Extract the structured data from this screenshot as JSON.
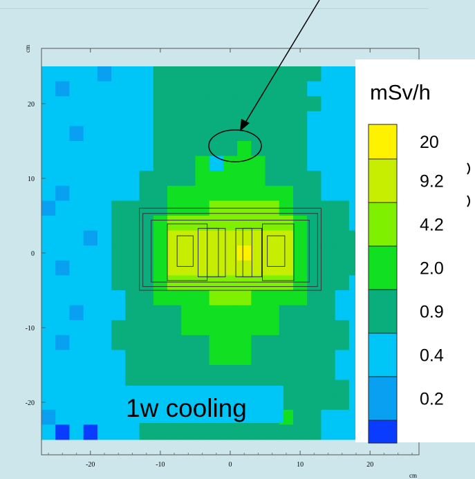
{
  "chart_data": {
    "type": "heatmap",
    "title": "",
    "x_unit": "cm",
    "y_unit": "cm",
    "xlim": [
      -27,
      27
    ],
    "ylim": [
      -25,
      25
    ],
    "grid_size_cm": 2,
    "x_ticks": [
      "-20",
      "-10",
      "0",
      "10",
      "20"
    ],
    "x_tick_values": [
      -20,
      -10,
      0,
      10,
      20
    ],
    "y_ticks": [
      "20",
      "10",
      "0",
      "-10",
      "-20"
    ],
    "y_tick_values": [
      20,
      10,
      0,
      -10,
      -20
    ],
    "annotation": "1w cooling",
    "colorbar": {
      "title": "mSv/h",
      "labels": [
        "20",
        "9.2",
        "4.2",
        "2.0",
        "0.9",
        "0.4",
        "0.2"
      ],
      "colors": [
        "#fef200",
        "#c7ee00",
        "#7ef000",
        "#11df22",
        "#0aad7c",
        "#00c6f7",
        "#0aa0f2",
        "#0a3cff"
      ]
    },
    "background_level": 5,
    "level_centers": [
      "#0aad7c",
      "#11df22",
      "#7ef000",
      "#c7ee00"
    ],
    "region_rows": [
      [
        19,
        24,
        -11,
        12,
        4
      ],
      [
        15,
        19,
        -11,
        11,
        4
      ],
      [
        11,
        15,
        -11,
        10,
        4
      ],
      [
        7,
        11,
        -13,
        13,
        4
      ],
      [
        3,
        7,
        -17,
        17,
        4
      ],
      [
        -1,
        3,
        -17,
        18,
        4
      ],
      [
        -5,
        -1,
        -17,
        18,
        4
      ],
      [
        -9,
        -5,
        -15,
        15,
        4
      ],
      [
        -13,
        -9,
        -17,
        17,
        4
      ],
      [
        -17,
        -13,
        -15,
        15,
        4
      ],
      [
        -21,
        -17,
        -15,
        17,
        4
      ],
      [
        -25,
        -21,
        -13,
        13,
        4
      ],
      [
        9,
        13,
        -5,
        5,
        3
      ],
      [
        5,
        9,
        -9,
        9,
        3
      ],
      [
        -3,
        5,
        -11,
        11,
        3
      ],
      [
        -7,
        -3,
        -11,
        11,
        3
      ],
      [
        -11,
        -7,
        -7,
        7,
        3
      ],
      [
        -15,
        -11,
        -3,
        3,
        3
      ],
      [
        5,
        7,
        -3,
        7,
        2
      ],
      [
        -5,
        5,
        -9,
        9,
        2
      ],
      [
        -7,
        -5,
        -3,
        3,
        2
      ],
      [
        -3,
        3,
        -9,
        9,
        1
      ],
      [
        -1,
        1,
        1,
        3,
        0
      ]
    ],
    "speckles": [
      [
        -25,
        25,
        5
      ],
      [
        -19,
        25,
        6
      ],
      [
        -25,
        23,
        6
      ],
      [
        -17,
        23,
        5
      ],
      [
        -21,
        21,
        5
      ],
      [
        -5,
        21,
        4
      ],
      [
        -7,
        19,
        4
      ],
      [
        -25,
        19,
        5
      ],
      [
        -17,
        15,
        5
      ],
      [
        -13,
        17,
        5
      ],
      [
        -3,
        13,
        5
      ],
      [
        1,
        15,
        3
      ],
      [
        3,
        13,
        3
      ],
      [
        -1,
        11,
        3
      ],
      [
        -25,
        9,
        6
      ],
      [
        -27,
        7,
        6
      ],
      [
        -21,
        3,
        6
      ],
      [
        -25,
        -1,
        6
      ],
      [
        -23,
        -7,
        6
      ],
      [
        -25,
        -11,
        6
      ],
      [
        -23,
        -15,
        5
      ],
      [
        -27,
        -21,
        6
      ],
      [
        -25,
        -23,
        7
      ],
      [
        -21,
        -23,
        7
      ],
      [
        -3,
        -23,
        4
      ],
      [
        3,
        -19,
        3
      ],
      [
        7,
        -21,
        3
      ],
      [
        13,
        -19,
        4
      ],
      [
        15,
        -23,
        5
      ],
      [
        19,
        -15,
        5
      ],
      [
        19,
        -9,
        5
      ],
      [
        17,
        -3,
        5
      ],
      [
        21,
        1,
        5
      ],
      [
        19,
        5,
        5
      ],
      [
        17,
        13,
        5
      ],
      [
        13,
        19,
        5
      ],
      [
        11,
        23,
        5
      ],
      [
        -11,
        19,
        4
      ],
      [
        9,
        -17,
        4
      ],
      [
        -11,
        -19,
        3
      ],
      [
        -23,
        17,
        6
      ],
      [
        23,
        -21,
        5
      ]
    ]
  }
}
